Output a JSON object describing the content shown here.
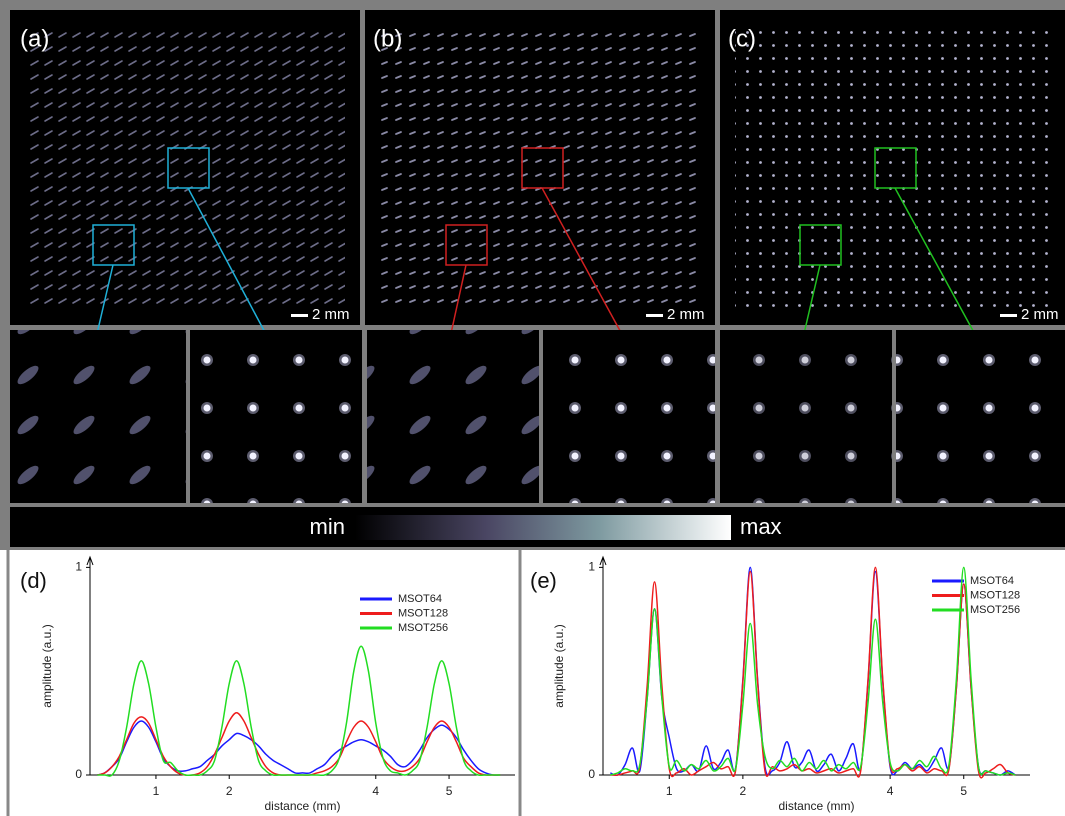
{
  "panels": [
    {
      "label": "(a)",
      "scale_bar": "2 mm"
    },
    {
      "label": "(b)",
      "scale_bar": "2 mm"
    },
    {
      "label": "(c)",
      "scale_bar": "2 mm"
    }
  ],
  "colorbar": {
    "min_label": "min",
    "max_label": "max"
  },
  "chart_data": [
    {
      "type": "line",
      "label": "(d)",
      "xlabel": "distance (mm)",
      "ylabel": "amplitude (a.u.)",
      "xlim": [
        0.1,
        5.9
      ],
      "ylim": [
        0,
        1.05
      ],
      "xticks": [
        1,
        2,
        4,
        5
      ],
      "yticks": [
        0,
        1
      ],
      "x": [
        0.2,
        0.3,
        0.4,
        0.5,
        0.6,
        0.7,
        0.8,
        0.9,
        1.0,
        1.1,
        1.2,
        1.3,
        1.4,
        1.5,
        1.6,
        1.7,
        1.8,
        1.9,
        2.0,
        2.1,
        2.2,
        2.3,
        2.4,
        2.5,
        2.6,
        2.7,
        2.8,
        2.9,
        3.0,
        3.1,
        3.2,
        3.3,
        3.4,
        3.5,
        3.6,
        3.7,
        3.8,
        3.9,
        4.0,
        4.1,
        4.2,
        4.3,
        4.4,
        4.5,
        4.6,
        4.7,
        4.8,
        4.9,
        5.0,
        5.1,
        5.2,
        5.3,
        5.4,
        5.5,
        5.6,
        5.7
      ],
      "series": [
        {
          "name": "MSOT64",
          "color": "#1a1aff",
          "values": [
            0,
            0.01,
            0.04,
            0.08,
            0.16,
            0.23,
            0.26,
            0.23,
            0.16,
            0.08,
            0.04,
            0.02,
            0.02,
            0.03,
            0.04,
            0.07,
            0.1,
            0.14,
            0.17,
            0.2,
            0.19,
            0.17,
            0.14,
            0.1,
            0.07,
            0.05,
            0.03,
            0.01,
            0.01,
            0.01,
            0.03,
            0.05,
            0.09,
            0.12,
            0.14,
            0.16,
            0.17,
            0.16,
            0.14,
            0.12,
            0.09,
            0.05,
            0.04,
            0.07,
            0.12,
            0.18,
            0.22,
            0.24,
            0.22,
            0.18,
            0.12,
            0.07,
            0.03,
            0.01,
            0,
            0
          ]
        },
        {
          "name": "MSOT128",
          "color": "#ee1c1c",
          "values": [
            0,
            0.01,
            0.04,
            0.09,
            0.17,
            0.25,
            0.28,
            0.25,
            0.17,
            0.09,
            0.04,
            0.01,
            0,
            0,
            0.01,
            0.04,
            0.1,
            0.18,
            0.26,
            0.3,
            0.26,
            0.18,
            0.1,
            0.04,
            0.01,
            0,
            0,
            0,
            0,
            0,
            0.01,
            0.02,
            0.04,
            0.08,
            0.16,
            0.23,
            0.26,
            0.23,
            0.16,
            0.08,
            0.04,
            0.02,
            0.02,
            0.04,
            0.08,
            0.16,
            0.23,
            0.26,
            0.23,
            0.16,
            0.08,
            0.04,
            0.01,
            0,
            0,
            0
          ]
        },
        {
          "name": "MSOT256",
          "color": "#22dd22",
          "values": [
            0,
            0,
            0,
            0.07,
            0.23,
            0.44,
            0.55,
            0.44,
            0.23,
            0.07,
            0.06,
            0.02,
            0,
            0,
            0,
            0.02,
            0.07,
            0.23,
            0.44,
            0.55,
            0.44,
            0.23,
            0.07,
            0.02,
            0,
            0,
            0,
            0,
            0,
            0,
            0,
            0,
            0.02,
            0.08,
            0.25,
            0.5,
            0.62,
            0.5,
            0.25,
            0.08,
            0.02,
            0.01,
            0,
            0.02,
            0.07,
            0.23,
            0.44,
            0.55,
            0.44,
            0.23,
            0.07,
            0.02,
            0,
            0,
            0,
            0
          ]
        }
      ]
    },
    {
      "type": "line",
      "label": "(e)",
      "xlabel": "distance (mm)",
      "ylabel": "amplitude (a.u.)",
      "xlim": [
        0.1,
        5.9
      ],
      "ylim": [
        0,
        1.05
      ],
      "xticks": [
        1,
        2,
        4,
        5
      ],
      "yticks": [
        0,
        1
      ],
      "x": [
        0.2,
        0.3,
        0.4,
        0.5,
        0.6,
        0.7,
        0.8,
        0.9,
        1.0,
        1.1,
        1.2,
        1.3,
        1.4,
        1.5,
        1.6,
        1.7,
        1.8,
        1.9,
        2.0,
        2.1,
        2.2,
        2.3,
        2.4,
        2.5,
        2.6,
        2.7,
        2.8,
        2.9,
        3.0,
        3.1,
        3.2,
        3.3,
        3.4,
        3.5,
        3.6,
        3.7,
        3.8,
        3.9,
        4.0,
        4.1,
        4.2,
        4.3,
        4.4,
        4.5,
        4.6,
        4.7,
        4.8,
        4.9,
        5.0,
        5.1,
        5.2,
        5.3,
        5.4,
        5.5,
        5.6,
        5.7
      ],
      "series": [
        {
          "name": "MSOT64",
          "color": "#1a1aff",
          "values": [
            0.01,
            0,
            0.05,
            0.13,
            0.02,
            0.37,
            0.8,
            0.37,
            0.18,
            0.03,
            0.02,
            0.05,
            0.02,
            0.14,
            0.03,
            0.06,
            0.12,
            0.03,
            0.46,
            1.0,
            0.46,
            0.04,
            0.02,
            0.06,
            0.16,
            0.04,
            0.06,
            0.12,
            0.02,
            0.05,
            0.1,
            0.02,
            0.08,
            0.15,
            0.03,
            0.45,
            0.98,
            0.45,
            0.04,
            0.02,
            0.06,
            0.03,
            0.05,
            0.02,
            0.07,
            0.13,
            0.04,
            0.42,
            0.92,
            0.42,
            0.04,
            0.02,
            0.01,
            0,
            0.02,
            0
          ]
        },
        {
          "name": "MSOT128",
          "color": "#ee1c1c",
          "values": [
            0,
            0,
            0.01,
            0.02,
            0.04,
            0.43,
            0.93,
            0.43,
            0.03,
            0.01,
            0.03,
            0,
            0.02,
            0.04,
            0.06,
            0.03,
            0.04,
            0.02,
            0.45,
            0.98,
            0.45,
            0.02,
            0.04,
            0.02,
            0.03,
            0.05,
            0.02,
            0.03,
            0.01,
            0.02,
            0.03,
            0.01,
            0.02,
            0.03,
            0.02,
            0.46,
            1.0,
            0.46,
            0.05,
            0.03,
            0.05,
            0.02,
            0.04,
            0.01,
            0.03,
            0.02,
            0.03,
            0.42,
            0.92,
            0.42,
            0.02,
            0.01,
            0.03,
            0.05,
            0.01,
            0
          ]
        },
        {
          "name": "MSOT256",
          "color": "#22dd22",
          "values": [
            0,
            0.01,
            0.03,
            0.02,
            0.05,
            0.37,
            0.8,
            0.37,
            0.04,
            0.07,
            0.02,
            0.05,
            0.03,
            0.07,
            0.02,
            0.04,
            0.08,
            0.03,
            0.34,
            0.73,
            0.34,
            0.09,
            0.03,
            0.07,
            0.04,
            0.08,
            0.02,
            0.06,
            0.03,
            0.07,
            0.02,
            0.05,
            0.03,
            0.06,
            0.04,
            0.35,
            0.75,
            0.35,
            0.06,
            0.02,
            0.05,
            0.03,
            0.07,
            0.04,
            0.09,
            0.03,
            0.05,
            0.46,
            1.0,
            0.46,
            0.04,
            0.02,
            0.01,
            0,
            0.01,
            0
          ]
        }
      ]
    }
  ]
}
